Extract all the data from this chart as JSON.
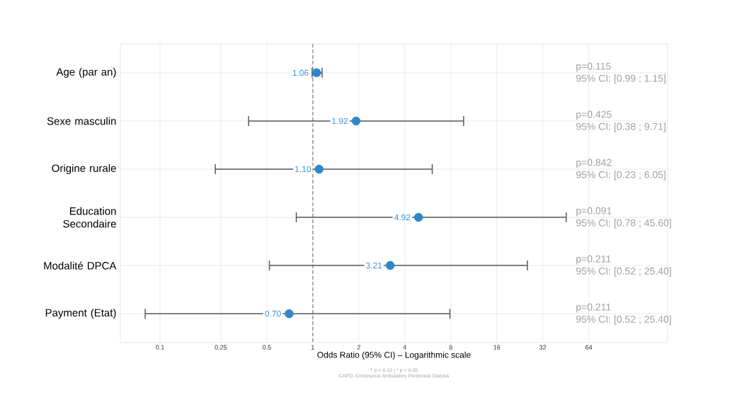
{
  "chart_data": {
    "type": "scatter",
    "orientation": "horizontal",
    "xlabel": "Odds Ratio (95% CI) – Logarithmic scale",
    "categories": [
      "Age (par an)",
      "Sexe masculin",
      "Origine rurale",
      "Education Secondaire",
      "Modalité DPCA",
      "Payment (Etat)"
    ],
    "values": [
      1.06,
      1.92,
      1.1,
      4.92,
      3.21,
      0.7
    ],
    "value_labels": [
      "1.06",
      "1.92",
      "1.10",
      "4.92",
      "3.21",
      "0.70"
    ],
    "errors": [
      [
        0.99,
        1.15
      ],
      [
        0.38,
        9.71
      ],
      [
        0.23,
        6.05
      ],
      [
        0.78,
        45.6
      ],
      [
        0.52,
        25.4
      ],
      [
        0.08,
        7.9
      ]
    ],
    "color": "#2e86c8",
    "log": "x",
    "xlim": [
      0.055,
      210
    ],
    "xticks": [
      0.1,
      0.25,
      0.5,
      1,
      2,
      4,
      8,
      16,
      32,
      64
    ],
    "grid": true,
    "marker": "circle",
    "ref_lines": [
      {
        "axis": "x",
        "value": 1,
        "line_style": "dashed",
        "color": "#808080"
      }
    ],
    "annotations": [
      "p=0.115",
      "95% CI: [0.99 ; 1.15]",
      "p=0.425",
      "95% CI: [0.38 ; 9.71]",
      "p=0.842",
      "95% CI: [0.23 ; 6.05]",
      "p=0.091",
      "95% CI: [0.78 ; 45.60]",
      "p=0.211",
      "95% CI: [0.52 ; 25.40]",
      "p=0.211",
      "95% CI: [0.52 ; 25.40]",
      "† p < 0.10 | * p < 0.05",
      "CAPD: Continuous Ambulatory Peritoneal Dialysis"
    ]
  }
}
